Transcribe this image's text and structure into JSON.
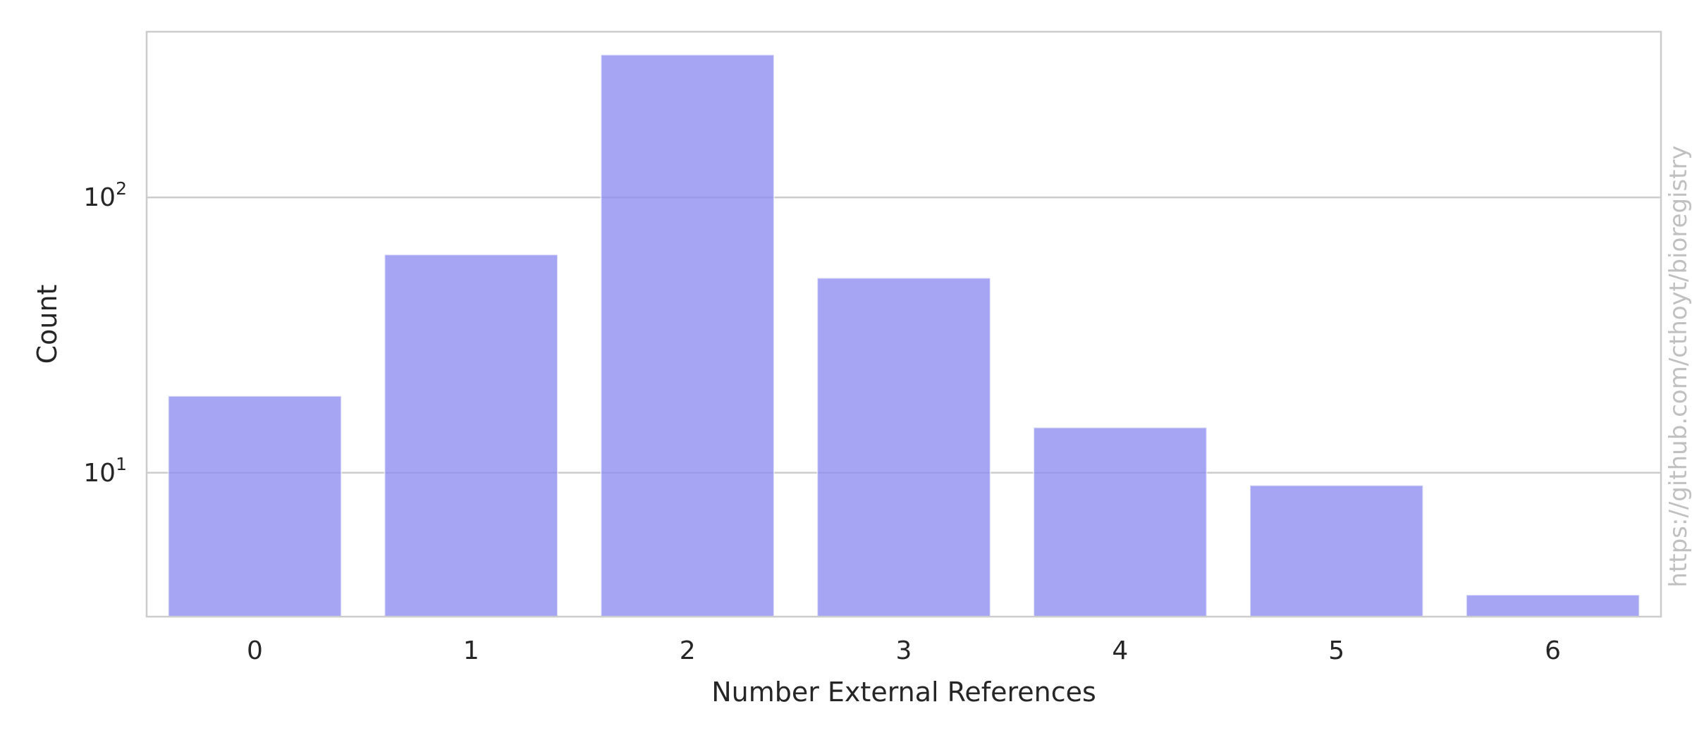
{
  "chart_data": {
    "type": "bar",
    "categories": [
      "0",
      "1",
      "2",
      "3",
      "4",
      "5",
      "6"
    ],
    "values": [
      19,
      62,
      330,
      51,
      14.6,
      9,
      3.6
    ],
    "xlabel": "Number External References",
    "ylabel": "Count",
    "yscale": "log",
    "ylim": [
      3.0,
      400
    ],
    "yticks": [
      {
        "value": 10,
        "base": "10",
        "exp": "1"
      },
      {
        "value": 100,
        "base": "10",
        "exp": "2"
      }
    ],
    "grid": "y",
    "bar_color": "#8c8cf0",
    "bar_opacity": 0.78,
    "watermark": "https://github.com/cthoyt/bioregistry"
  }
}
